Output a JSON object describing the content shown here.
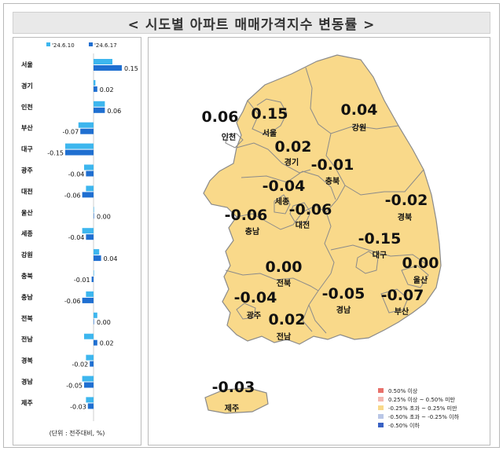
{
  "title": "< 시도별 아파트 매매가격지수 변동률 >",
  "unit_note": "(단위 : 전주대비, %)",
  "chart_data": {
    "type": "bar",
    "orientation": "horizontal",
    "categories": [
      "서울",
      "경기",
      "인천",
      "부산",
      "대구",
      "광주",
      "대전",
      "울산",
      "세종",
      "강원",
      "충북",
      "충남",
      "전북",
      "전남",
      "경북",
      "경남",
      "제주"
    ],
    "series": [
      {
        "name": "'24.6.10",
        "color": "#3db6ee",
        "values": [
          0.1,
          0.01,
          0.06,
          -0.08,
          -0.15,
          -0.05,
          -0.04,
          0.0,
          -0.06,
          0.03,
          0.0,
          -0.04,
          0.02,
          -0.05,
          -0.04,
          -0.06,
          -0.04
        ]
      },
      {
        "name": "'24.6.17",
        "color": "#1f6fd1",
        "values": [
          0.15,
          0.02,
          0.06,
          -0.07,
          -0.15,
          -0.04,
          -0.06,
          0.0,
          -0.04,
          0.04,
          -0.01,
          -0.06,
          0.0,
          0.02,
          -0.02,
          -0.05,
          -0.03
        ]
      }
    ],
    "value_labels": [
      "0.15",
      "0.02",
      "0.06",
      "-0.07",
      "-0.15",
      "-0.04",
      "-0.06",
      "0.00",
      "-0.04",
      "0.04",
      "-0.01",
      "-0.06",
      "0.00",
      "0.02",
      "-0.02",
      "-0.05",
      "-0.03"
    ],
    "xlim": [
      -0.2,
      0.2
    ]
  },
  "map": {
    "regions": [
      {
        "name": "인천",
        "value": "0.06"
      },
      {
        "name": "서울",
        "value": "0.15"
      },
      {
        "name": "강원",
        "value": "0.04"
      },
      {
        "name": "경기",
        "value": "0.02"
      },
      {
        "name": "충북",
        "value": "-0.01"
      },
      {
        "name": "세종",
        "value": "-0.04"
      },
      {
        "name": "경북",
        "value": "-0.02"
      },
      {
        "name": "충남",
        "value": "-0.06"
      },
      {
        "name": "대전",
        "value": "-0.06"
      },
      {
        "name": "대구",
        "value": "-0.15"
      },
      {
        "name": "전북",
        "value": "0.00"
      },
      {
        "name": "울산",
        "value": "0.00"
      },
      {
        "name": "광주",
        "value": "-0.04"
      },
      {
        "name": "경남",
        "value": "-0.05"
      },
      {
        "name": "부산",
        "value": "-0.07"
      },
      {
        "name": "전남",
        "value": "0.02"
      },
      {
        "name": "제주",
        "value": "-0.03"
      }
    ],
    "fill_color": "#f9d98a",
    "border_color": "#8a8a8a"
  },
  "legend": [
    {
      "label": "0.50% 이상",
      "color": "#e8706a"
    },
    {
      "label": "0.25% 이상 ~ 0.50% 미만",
      "color": "#f3b7b0"
    },
    {
      "label": "-0.25% 초과 ~ 0.25% 미만",
      "color": "#f9d98a"
    },
    {
      "label": "-0.50% 초과 ~ -0.25% 이하",
      "color": "#b9c6e6"
    },
    {
      "label": "-0.50% 이하",
      "color": "#3a62c4"
    }
  ]
}
